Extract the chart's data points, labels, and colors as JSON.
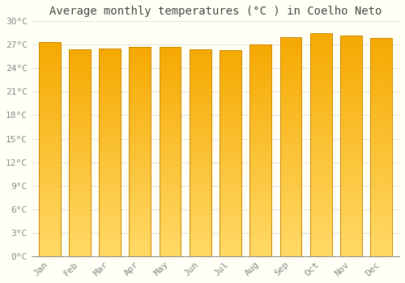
{
  "title": "Average monthly temperatures (°C ) in Coelho Neto",
  "months": [
    "Jan",
    "Feb",
    "Mar",
    "Apr",
    "May",
    "Jun",
    "Jul",
    "Aug",
    "Sep",
    "Oct",
    "Nov",
    "Dec"
  ],
  "values": [
    27.3,
    26.4,
    26.5,
    26.7,
    26.7,
    26.4,
    26.3,
    27.0,
    28.0,
    28.5,
    28.2,
    27.9
  ],
  "bar_color_top": "#F5A800",
  "bar_color_bottom": "#FFD966",
  "ylim": [
    0,
    30
  ],
  "yticks": [
    0,
    3,
    6,
    9,
    12,
    15,
    18,
    21,
    24,
    27,
    30
  ],
  "ytick_labels": [
    "0°C",
    "3°C",
    "6°C",
    "9°C",
    "12°C",
    "15°C",
    "18°C",
    "21°C",
    "24°C",
    "27°C",
    "30°C"
  ],
  "background_color": "#FFFFF5",
  "grid_color": "#DDDDDD",
  "title_fontsize": 10,
  "tick_fontsize": 8,
  "title_color": "#444444",
  "tick_color": "#888888",
  "bar_edge_color": "#CC8800",
  "bar_left_edge_color": "#CC7700"
}
